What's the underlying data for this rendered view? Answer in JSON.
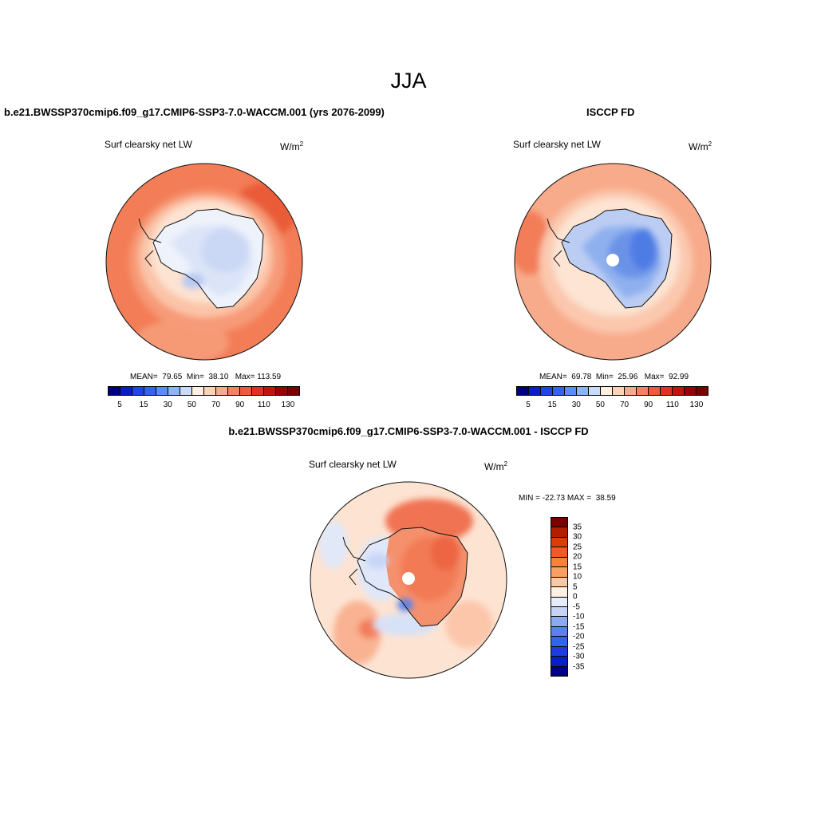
{
  "title": "JJA",
  "panels": {
    "model": {
      "title": "b.e21.BWSSP370cmip6.f09_g17.CMIP6-SSP3-7.0-WACCM.001 (yrs 2076-2099)",
      "variable": "Surf clearsky net LW",
      "units_base": "W/m",
      "units_exp": "2",
      "stats": "MEAN=  79.65  Min=  38.10   Max= 113.59"
    },
    "obs": {
      "title": "ISCCP FD",
      "variable": "Surf clearsky net LW",
      "units_base": "W/m",
      "units_exp": "2",
      "stats": "MEAN=  69.78  Min=  25.96   Max=  92.99"
    },
    "diff": {
      "title": "b.e21.BWSSP370cmip6.f09_g17.CMIP6-SSP3-7.0-WACCM.001 - ISCCP FD",
      "variable": "Surf clearsky net LW",
      "units_base": "W/m",
      "units_exp": "2",
      "stats": "MIN = -22.73 MAX =  38.59"
    }
  },
  "colorbars": {
    "abs_ticks": [
      "5",
      "15",
      "30",
      "50",
      "70",
      "90",
      "110",
      "130"
    ],
    "abs_colors": [
      "#00007f",
      "#0a1ec8",
      "#1e46e6",
      "#3264f0",
      "#5a8cf5",
      "#8cb4fa",
      "#c8dcfa",
      "#fff0e1",
      "#fcd2b9",
      "#faaa8c",
      "#f5825f",
      "#f05a37",
      "#e1321e",
      "#c3140a",
      "#960000",
      "#780000"
    ],
    "diff_ticks": [
      "35",
      "30",
      "25",
      "20",
      "15",
      "10",
      "5",
      "0",
      "-5",
      "-10",
      "-15",
      "-20",
      "-25",
      "-30",
      "-35"
    ],
    "diff_colors": [
      "#780000",
      "#b41e00",
      "#dc3c0a",
      "#f05a28",
      "#f5823c",
      "#faa064",
      "#fcc8a0",
      "#fff0e1",
      "#e6ecfa",
      "#c8d2f5",
      "#8caaf0",
      "#5a82eb",
      "#3264eb",
      "#1e3ce1",
      "#0a1ec8",
      "#00008c"
    ]
  }
}
